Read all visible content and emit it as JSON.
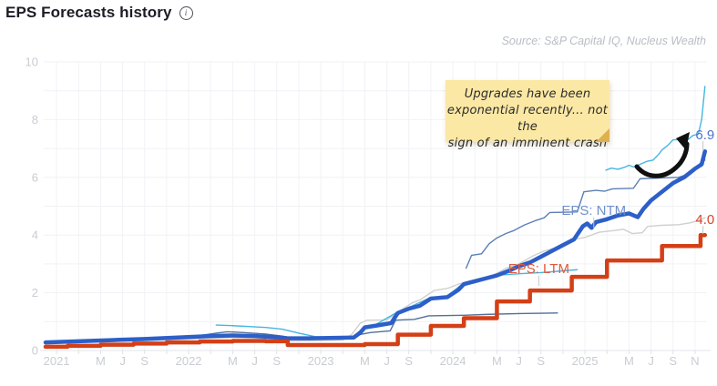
{
  "header": {
    "title": "EPS Forecasts history",
    "info_icon": "info-circle"
  },
  "source": "Source: S&P Capital IQ, Nucleus Wealth",
  "annotation": {
    "note_lines": [
      "Upgrades have been",
      "exponential recently... not the",
      "sign of an imminent crash"
    ],
    "arrow": "curved-arrow-up-right"
  },
  "colors": {
    "grid": "#f1f2f5",
    "axis": "#e2e4e8",
    "tick": "#dfe1e6",
    "axis_label": "#c9ccd3",
    "ltm": "#d43f16",
    "ntm": "#2d5fc8",
    "cyan": "#45b6e0",
    "slate_upper": "#5b80b4",
    "slate_lower": "#51709b",
    "gray_line": "#cfcfcf",
    "ntm_label": "#6f8fcd",
    "ltm_label": "#e0593c",
    "end_ntm": "#4d74c9",
    "end_ltm": "#d8432a",
    "leader": "#c4c6cc"
  },
  "chart_data": {
    "type": "line",
    "title": "EPS Forecasts history",
    "t_unit": "months since Dec 2020",
    "x_axis": {
      "start": "Dec 2020",
      "end": "Nov 2025",
      "ticks": [
        {
          "t": 1,
          "label": "2021"
        },
        {
          "t": 5,
          "label": "M"
        },
        {
          "t": 7,
          "label": "J"
        },
        {
          "t": 9,
          "label": "S"
        },
        {
          "t": 13,
          "label": "2022"
        },
        {
          "t": 17,
          "label": "M"
        },
        {
          "t": 19,
          "label": "J"
        },
        {
          "t": 21,
          "label": "S"
        },
        {
          "t": 25,
          "label": "2023"
        },
        {
          "t": 29,
          "label": "M"
        },
        {
          "t": 31,
          "label": "J"
        },
        {
          "t": 33,
          "label": "S"
        },
        {
          "t": 37,
          "label": "2024"
        },
        {
          "t": 41,
          "label": "M"
        },
        {
          "t": 43,
          "label": "J"
        },
        {
          "t": 45,
          "label": "S"
        },
        {
          "t": 49,
          "label": "2025"
        },
        {
          "t": 53,
          "label": "M"
        },
        {
          "t": 55,
          "label": "J"
        },
        {
          "t": 57,
          "label": "S"
        },
        {
          "t": 59,
          "label": "N"
        }
      ],
      "grid_interval_months": 2
    },
    "y_axis": {
      "min": 0,
      "max": 10,
      "ticks": [
        0,
        2,
        4,
        6,
        8,
        10
      ],
      "grid_interval": 1
    },
    "series": [
      {
        "id": "thin-gray",
        "label": "",
        "color": "#cfcfcf",
        "width": 1.4,
        "step": false,
        "segments": [
          [
            [
              0,
              0.25
            ],
            [
              4,
              0.29
            ],
            [
              8,
              0.33
            ],
            [
              12,
              0.38
            ],
            [
              15,
              0.43
            ],
            [
              17,
              0.45
            ],
            [
              19,
              0.44
            ],
            [
              21,
              0.38
            ],
            [
              22,
              0.33
            ],
            [
              24,
              0.34
            ],
            [
              27,
              0.36
            ],
            [
              27.8,
              0.55
            ],
            [
              28.6,
              0.95
            ],
            [
              29.2,
              1.05
            ],
            [
              31,
              1.06
            ],
            [
              32.3,
              1.4
            ],
            [
              33.3,
              1.65
            ],
            [
              34,
              1.75
            ],
            [
              35.3,
              2.08
            ],
            [
              36.5,
              2.15
            ],
            [
              37.5,
              2.3
            ],
            [
              39,
              2.45
            ],
            [
              40.5,
              2.58
            ],
            [
              42,
              2.88
            ],
            [
              43,
              3.0
            ],
            [
              44.3,
              3.28
            ],
            [
              45.3,
              3.45
            ],
            [
              46.5,
              3.58
            ],
            [
              48,
              3.85
            ],
            [
              49,
              3.92
            ],
            [
              50.3,
              4.1
            ],
            [
              51.5,
              4.15
            ],
            [
              52.5,
              4.2
            ],
            [
              53.3,
              4.05
            ],
            [
              54.2,
              4.08
            ],
            [
              54.7,
              4.3
            ],
            [
              56,
              4.34
            ],
            [
              57.5,
              4.36
            ],
            [
              58.5,
              4.42
            ],
            [
              59.3,
              4.5
            ],
            [
              59.9,
              4.6
            ]
          ]
        ]
      },
      {
        "id": "thin-slate-lower",
        "label": "",
        "color": "#51709b",
        "width": 1.4,
        "step": false,
        "segments": [
          [
            [
              0,
              0.32
            ],
            [
              4,
              0.36
            ],
            [
              8,
              0.42
            ],
            [
              12,
              0.48
            ],
            [
              14,
              0.52
            ],
            [
              15.5,
              0.6
            ],
            [
              16.5,
              0.65
            ],
            [
              18,
              0.62
            ],
            [
              20,
              0.57
            ],
            [
              21.5,
              0.5
            ],
            [
              22.5,
              0.44
            ],
            [
              24,
              0.4
            ],
            [
              27.5,
              0.4
            ],
            [
              28.5,
              0.55
            ],
            [
              29.5,
              0.62
            ],
            [
              31.3,
              0.68
            ],
            [
              31.8,
              1.05
            ],
            [
              33.5,
              1.08
            ],
            [
              34.8,
              1.2
            ],
            [
              38,
              1.22
            ],
            [
              40,
              1.25
            ],
            [
              43,
              1.28
            ],
            [
              46.5,
              1.3
            ]
          ]
        ]
      },
      {
        "id": "thin-cyan",
        "label": "",
        "color": "#45b6e0",
        "width": 1.4,
        "step": false,
        "segments": [
          [
            [
              15.5,
              0.88
            ],
            [
              17,
              0.86
            ],
            [
              18.5,
              0.83
            ],
            [
              20,
              0.8
            ],
            [
              21.5,
              0.74
            ],
            [
              23,
              0.6
            ],
            [
              24.5,
              0.48
            ],
            [
              26,
              0.46
            ],
            [
              28,
              0.49
            ],
            [
              29,
              0.84
            ],
            [
              30,
              0.9
            ],
            [
              32,
              1.34
            ],
            [
              33,
              1.49
            ],
            [
              35,
              1.84
            ],
            [
              36.5,
              1.89
            ],
            [
              38,
              2.34
            ],
            [
              40,
              2.54
            ],
            [
              41.5,
              2.62
            ],
            [
              43,
              2.66
            ],
            [
              45,
              2.7
            ],
            [
              47,
              2.76
            ],
            [
              48.3,
              2.8
            ]
          ],
          [
            [
              50.9,
              6.25
            ],
            [
              51.4,
              6.32
            ],
            [
              52,
              6.28
            ],
            [
              52.6,
              6.35
            ],
            [
              53,
              6.42
            ],
            [
              53.4,
              6.36
            ],
            [
              54,
              6.45
            ],
            [
              54.6,
              6.55
            ],
            [
              55.2,
              6.6
            ],
            [
              55.7,
              6.8
            ],
            [
              56,
              6.95
            ],
            [
              56.5,
              7.1
            ],
            [
              57,
              7.3
            ],
            [
              58.4,
              7.32
            ],
            [
              58.8,
              7.45
            ],
            [
              59.3,
              7.5
            ],
            [
              59.6,
              8.0
            ],
            [
              59.9,
              9.15
            ]
          ]
        ]
      },
      {
        "id": "thin-slate-upper",
        "label": "",
        "color": "#5b80b4",
        "width": 1.4,
        "step": false,
        "segments": [
          [
            [
              38.2,
              2.85
            ],
            [
              38.7,
              3.3
            ],
            [
              39.6,
              3.35
            ],
            [
              40.3,
              3.7
            ],
            [
              41,
              3.9
            ],
            [
              41.8,
              4.05
            ],
            [
              42.5,
              4.15
            ],
            [
              43.5,
              4.35
            ],
            [
              44.5,
              4.5
            ],
            [
              45.3,
              4.6
            ],
            [
              45.8,
              4.78
            ],
            [
              48.3,
              4.8
            ],
            [
              48.9,
              5.5
            ],
            [
              50,
              5.55
            ],
            [
              50.8,
              5.52
            ],
            [
              51.5,
              5.6
            ],
            [
              53.4,
              5.62
            ],
            [
              54,
              5.95
            ],
            [
              56,
              5.98
            ],
            [
              57.5,
              6.0
            ],
            [
              58.3,
              6.1
            ],
            [
              59,
              6.28
            ],
            [
              59.5,
              6.5
            ],
            [
              59.9,
              6.6
            ]
          ]
        ]
      },
      {
        "id": "eps-ntm",
        "label": "EPS: NTM",
        "color": "#2d5fc8",
        "width": 4.5,
        "step": false,
        "segments": [
          [
            [
              0,
              0.28
            ],
            [
              3,
              0.32
            ],
            [
              6,
              0.36
            ],
            [
              9,
              0.4
            ],
            [
              12,
              0.45
            ],
            [
              15,
              0.5
            ],
            [
              17,
              0.52
            ],
            [
              19,
              0.5
            ],
            [
              21,
              0.46
            ],
            [
              22,
              0.42
            ],
            [
              24,
              0.42
            ],
            [
              28,
              0.45
            ],
            [
              28.6,
              0.62
            ],
            [
              29,
              0.8
            ],
            [
              30,
              0.86
            ],
            [
              31.4,
              0.95
            ],
            [
              32,
              1.3
            ],
            [
              33,
              1.45
            ],
            [
              34,
              1.55
            ],
            [
              35,
              1.8
            ],
            [
              36.5,
              1.85
            ],
            [
              37.5,
              2.1
            ],
            [
              38,
              2.3
            ],
            [
              39,
              2.4
            ],
            [
              40,
              2.5
            ],
            [
              41,
              2.6
            ],
            [
              42,
              2.75
            ],
            [
              43,
              2.92
            ],
            [
              44,
              3.05
            ],
            [
              45,
              3.25
            ],
            [
              46,
              3.45
            ],
            [
              47,
              3.65
            ],
            [
              48,
              3.85
            ],
            [
              48.8,
              4.3
            ],
            [
              49.2,
              4.4
            ],
            [
              49.6,
              4.25
            ],
            [
              50,
              4.45
            ],
            [
              51,
              4.55
            ],
            [
              52,
              4.68
            ],
            [
              53,
              4.75
            ],
            [
              53.8,
              4.62
            ],
            [
              54.3,
              4.9
            ],
            [
              55,
              5.2
            ],
            [
              56,
              5.5
            ],
            [
              57,
              5.8
            ],
            [
              58,
              6.0
            ],
            [
              59,
              6.3
            ],
            [
              59.6,
              6.45
            ],
            [
              59.9,
              6.9
            ]
          ]
        ]
      },
      {
        "id": "eps-ltm",
        "label": "EPS: LTM",
        "color": "#d43f16",
        "width": 4.5,
        "step": true,
        "segments": [
          [
            [
              0,
              0.13
            ],
            [
              2,
              0.16
            ],
            [
              5,
              0.2
            ],
            [
              8,
              0.24
            ],
            [
              11,
              0.28
            ],
            [
              14,
              0.31
            ],
            [
              17,
              0.33
            ],
            [
              20,
              0.32
            ],
            [
              22,
              0.19
            ],
            [
              29,
              0.22
            ],
            [
              32,
              0.55
            ],
            [
              35,
              0.85
            ],
            [
              38,
              1.12
            ],
            [
              41,
              1.7
            ],
            [
              44,
              2.08
            ],
            [
              47.8,
              2.55
            ],
            [
              51,
              3.12
            ],
            [
              56,
              3.62
            ],
            [
              59.5,
              4.0
            ],
            [
              59.9,
              4.0
            ]
          ]
        ]
      }
    ],
    "line_labels": [
      {
        "text": "EPS: NTM",
        "t": 49.8,
        "v": 4.86,
        "color": "#6f8fcd",
        "tick_v1": 4.62,
        "tick_v2": 4.25
      },
      {
        "text": "EPS: LTM",
        "t": 44.8,
        "v": 2.84,
        "color": "#e0593c",
        "tick_v1": 2.6,
        "tick_v2": 2.24
      }
    ],
    "end_labels": [
      {
        "text": "6.9",
        "t": 59.9,
        "v": 7.48,
        "color": "#4d74c9"
      },
      {
        "text": "4.0",
        "t": 59.9,
        "v": 4.54,
        "color": "#d8432a"
      }
    ],
    "leader_lines": [
      {
        "t": 59.72,
        "v1": 7.26,
        "v2": 6.92
      },
      {
        "t": 59.72,
        "v1": 4.32,
        "v2": 4.04
      }
    ],
    "legend_position": "inline-on-lines",
    "grid": "on"
  }
}
